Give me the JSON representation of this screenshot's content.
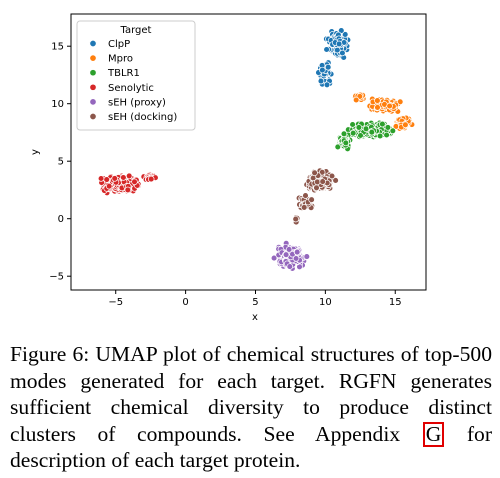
{
  "chart_data": {
    "type": "scatter",
    "xlabel": "x",
    "ylabel": "y",
    "xlim": [
      -8.2,
      17.2
    ],
    "ylim": [
      -6.2,
      17.8
    ],
    "xticks": [
      -5,
      0,
      5,
      10,
      15
    ],
    "yticks": [
      -5,
      0,
      5,
      10,
      15
    ],
    "xtick_labels": [
      "−5",
      "0",
      "5",
      "10",
      "15"
    ],
    "ytick_labels": [
      "−5",
      "0",
      "5",
      "10",
      "15"
    ],
    "legend": {
      "title": "Target",
      "placement": "top-left"
    },
    "grid": false,
    "series": [
      {
        "name": "ClpP",
        "color": "#1f77b4",
        "x_range": [
          9.3,
          12.0
        ],
        "y_range": [
          11.0,
          17.2
        ]
      },
      {
        "name": "Mpro",
        "color": "#ff7f0e",
        "x_range": [
          11.3,
          16.6
        ],
        "y_range": [
          7.0,
          11.2
        ]
      },
      {
        "name": "TBLR1",
        "color": "#2ca02c",
        "x_range": [
          10.3,
          16.2
        ],
        "y_range": [
          5.4,
          9.8
        ]
      },
      {
        "name": "Senolytic",
        "color": "#d62728",
        "x_range": [
          -6.8,
          -2.0
        ],
        "y_range": [
          1.2,
          4.9
        ]
      },
      {
        "name": "sEH (proxy)",
        "color": "#9467bd",
        "x_range": [
          5.6,
          9.5
        ],
        "y_range": [
          -5.9,
          -1.1
        ]
      },
      {
        "name": "sEH (docking)",
        "color": "#8c564b",
        "x_range": [
          7.3,
          11.6
        ],
        "y_range": [
          -0.8,
          5.6
        ]
      }
    ]
  },
  "caption": {
    "part1": "Figure 6: UMAP plot of chemical structures of top-500 modes generated for each target. RGFN generates sufficient chemical diversity to produce distinct clusters of compounds. See Appendix",
    "ref": "G",
    "part2": "for description of each target protein."
  }
}
